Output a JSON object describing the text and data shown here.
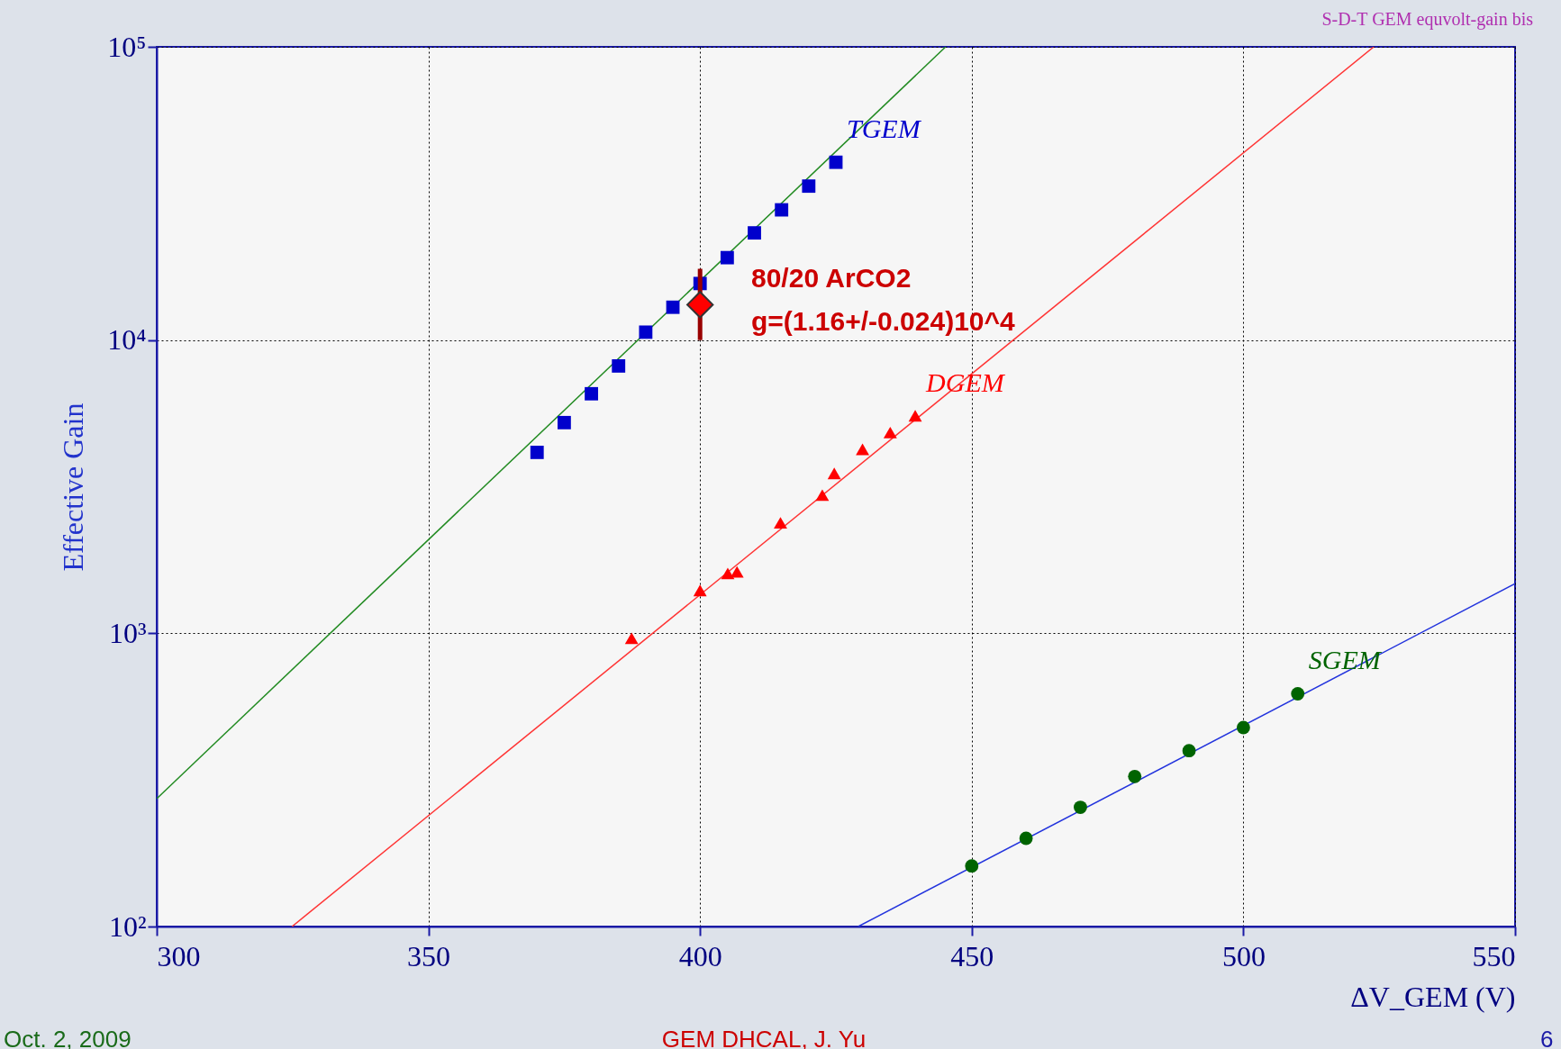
{
  "chart_data": {
    "type": "scatter",
    "xlabel": "ΔV_GEM (V)",
    "ylabel": "Effective Gain",
    "xlim": [
      300,
      550
    ],
    "xticks": [
      300,
      350,
      400,
      450,
      500,
      550
    ],
    "ylim": [
      100,
      100000
    ],
    "yticks": [
      {
        "value": 100,
        "label": "10²"
      },
      {
        "value": 1000,
        "label": "10³"
      },
      {
        "value": 10000,
        "label": "10⁴"
      },
      {
        "value": 100000,
        "label": "10⁵"
      }
    ],
    "log": "y",
    "grid": true,
    "legend": false,
    "series": [
      {
        "type": "line",
        "line_style": "solid",
        "color": "#228b22",
        "x": [
          300,
          445.2
        ],
        "values": [
          273,
          100000
        ]
      },
      {
        "type": "line",
        "line_style": "solid",
        "color": "#ff3333",
        "x": [
          324.9,
          524
        ],
        "values": [
          100,
          100000
        ]
      },
      {
        "type": "line",
        "line_style": "solid",
        "color": "#2233dd",
        "x": [
          429.1,
          550
        ],
        "values": [
          100,
          1476
        ]
      },
      {
        "name": "TGEM",
        "marker": "square",
        "color": "#0000cc",
        "x": [
          370,
          375,
          380,
          385,
          390,
          395,
          400,
          405,
          410,
          415,
          420,
          425
        ],
        "values": [
          4140,
          5230,
          6560,
          8160,
          10640,
          12940,
          15590,
          19100,
          23200,
          27800,
          33500,
          40400
        ]
      },
      {
        "name": "DGEM",
        "marker": "triangle",
        "color": "#ff0000",
        "x": [
          387.4,
          400,
          405.1,
          406.8,
          414.8,
          422.5,
          424.7,
          429.9,
          435,
          439.6
        ],
        "values": [
          962,
          1400,
          1600,
          1620,
          2380,
          2960,
          3510,
          4240,
          4840,
          5520
        ]
      },
      {
        "name": "SGEM",
        "marker": "circle",
        "color": "#006400",
        "x": [
          450,
          460,
          470,
          480,
          490,
          500,
          510
        ],
        "values": [
          161,
          200,
          255,
          325,
          398,
          477,
          622
        ]
      },
      {
        "marker": "diamond",
        "color": "#ff0000",
        "x": [
          400
        ],
        "values": [
          13200
        ],
        "errors": [
          [
            10000,
            17500
          ]
        ]
      }
    ],
    "annotations": [
      "80/20 ArCO2",
      "g=(1.16+/-0.024)10^4",
      "S-D-T GEM equvolt-gain bis",
      "Oct. 2, 2009",
      "GEM DHCAL, J. Yu",
      "6"
    ]
  }
}
